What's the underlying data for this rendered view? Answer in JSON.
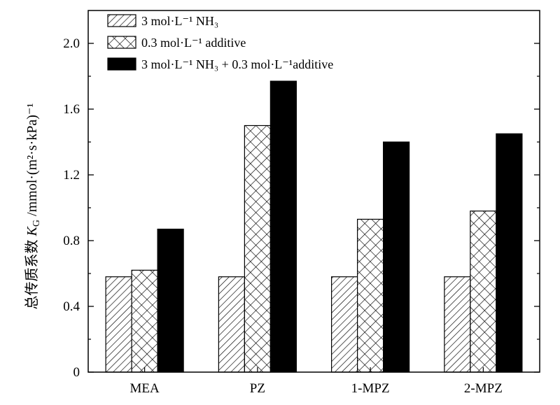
{
  "chart_data": {
    "type": "bar",
    "categories": [
      "MEA",
      "PZ",
      "1-MPZ",
      "2-MPZ"
    ],
    "series": [
      {
        "name": "3 mol·L⁻¹ NH₃",
        "values": [
          0.58,
          0.58,
          0.58,
          0.58
        ],
        "pattern": "diagonal-hatch"
      },
      {
        "name": "0.3 mol·L⁻¹ additive",
        "values": [
          0.62,
          1.5,
          0.93,
          0.98
        ],
        "pattern": "cross-hatch"
      },
      {
        "name": "3 mol·L⁻¹ NH₃ + 0.3 mol·L⁻¹additive",
        "values": [
          0.87,
          1.77,
          1.4,
          1.45
        ],
        "pattern": "solid-black"
      }
    ],
    "ylabel": "总传质系数 K_G /mmol·(m²·s·kPa)⁻¹",
    "ylim": [
      0,
      2.2
    ],
    "yticks": [
      0,
      0.4,
      0.8,
      1.2,
      1.6,
      2.0
    ],
    "ytick_labels": [
      "0",
      "0.4",
      "0.8",
      "1.2",
      "1.6",
      "2.0"
    ],
    "legend_position": "top-left",
    "grid": false
  }
}
